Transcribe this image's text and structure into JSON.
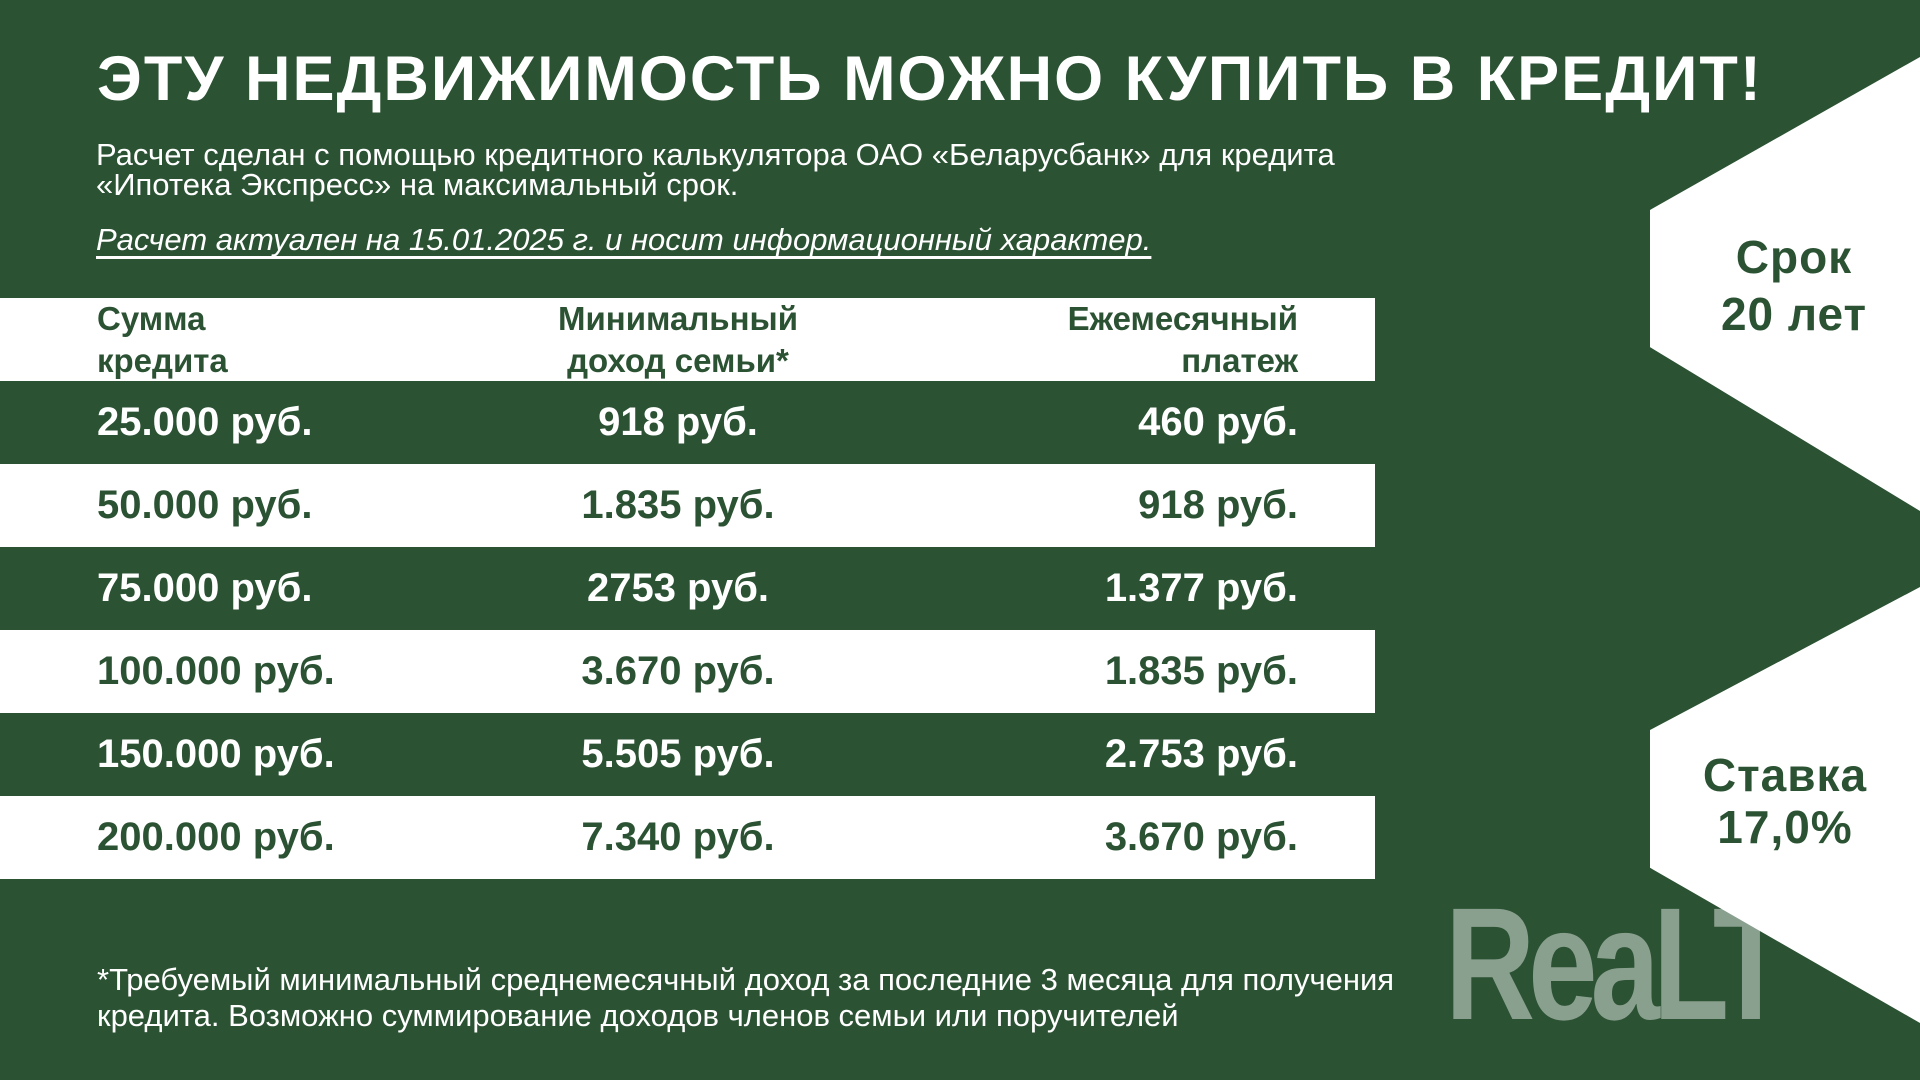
{
  "title": "ЭТУ НЕДВИЖИМОСТЬ МОЖНО КУПИТЬ В КРЕДИТ!",
  "subtitle": "Расчет сделан с помощью кредитного калькулятора ОАО «Беларусбанк» для кредита\n«Ипотека Экспресс» на максимальный срок.",
  "note": "Расчет актуален на 15.01.2025 г. и носит информационный характер.",
  "table": {
    "columns": [
      "Сумма\nкредита",
      "Минимальный\nдоход семьи*",
      "Ежемесячный\nплатеж"
    ],
    "rows": [
      [
        "25.000 руб.",
        "918 руб.",
        "460 руб."
      ],
      [
        "50.000 руб.",
        "1.835 руб.",
        "918 руб."
      ],
      [
        "75.000 руб.",
        "2753 руб.",
        "1.377 руб."
      ],
      [
        "100.000 руб.",
        "3.670 руб.",
        "1.835 руб."
      ],
      [
        "150.000 руб.",
        "5.505 руб.",
        "2.753 руб."
      ],
      [
        "200.000 руб.",
        "7.340 руб.",
        "3.670 руб."
      ]
    ]
  },
  "badges": {
    "term_label": "Срок",
    "term_value": "20 лет",
    "rate_label": "Ставка",
    "rate_value": "17,0%"
  },
  "footnote": "*Требуемый минимальный среднемесячный доход за последние 3 месяца для получения\nкредита. Возможно суммирование доходов членов семьи или поручителей",
  "watermark": "ReaLT",
  "colors": {
    "background": "#2b5233",
    "band": "#ffffff",
    "text_dark": "#2b5233",
    "text_light": "#ffffff"
  }
}
